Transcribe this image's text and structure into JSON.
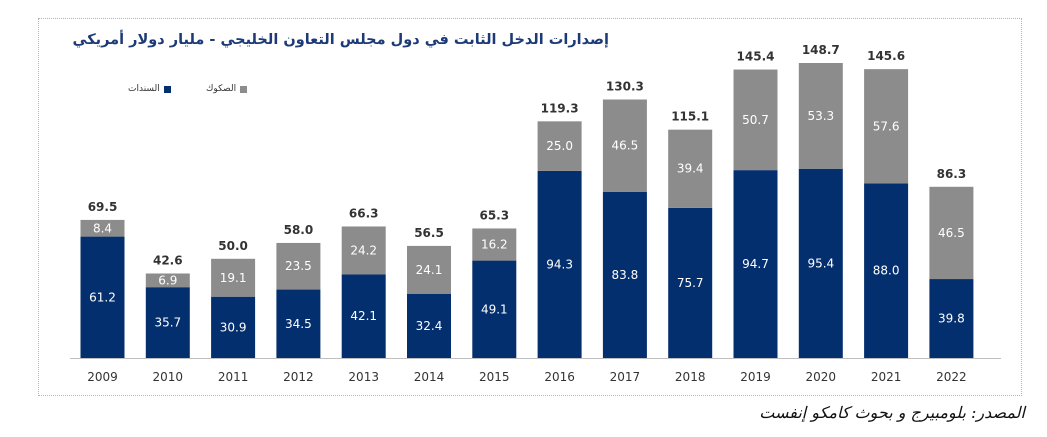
{
  "title": "إصدارات الدخل الثابت في دول مجلس التعاون الخليجي - مليار دولار أمريكي",
  "source": "المصدر: بلومبيرج و بحوث كامكو إنفست",
  "colors": {
    "bonds": "#042f6e",
    "sukuk": "#8c8c8c",
    "title": "#1c3a77"
  },
  "chart_data": {
    "type": "bar",
    "stacked": true,
    "title": "إصدارات الدخل الثابت في دول مجلس التعاون الخليجي - مليار دولار أمريكي",
    "categories": [
      "2009",
      "2010",
      "2011",
      "2012",
      "2013",
      "2014",
      "2015",
      "2016",
      "2017",
      "2018",
      "2019",
      "2020",
      "2021",
      "2022"
    ],
    "series": [
      {
        "name": "السندات",
        "values": [
          61.2,
          35.7,
          30.9,
          34.5,
          42.1,
          32.4,
          49.1,
          94.3,
          83.8,
          75.7,
          94.7,
          95.4,
          88.0,
          39.8
        ]
      },
      {
        "name": "الصكوك",
        "values": [
          8.4,
          6.9,
          19.1,
          23.5,
          24.2,
          24.1,
          16.2,
          25.0,
          46.5,
          39.4,
          50.7,
          53.3,
          57.6,
          46.5
        ]
      }
    ],
    "totals": [
      69.5,
      42.6,
      50.0,
      58.0,
      66.3,
      56.5,
      65.3,
      119.3,
      130.3,
      115.1,
      145.4,
      148.7,
      145.6,
      86.3
    ],
    "legend_position": "top-left",
    "grid": false,
    "ylim": [
      0,
      160
    ]
  }
}
